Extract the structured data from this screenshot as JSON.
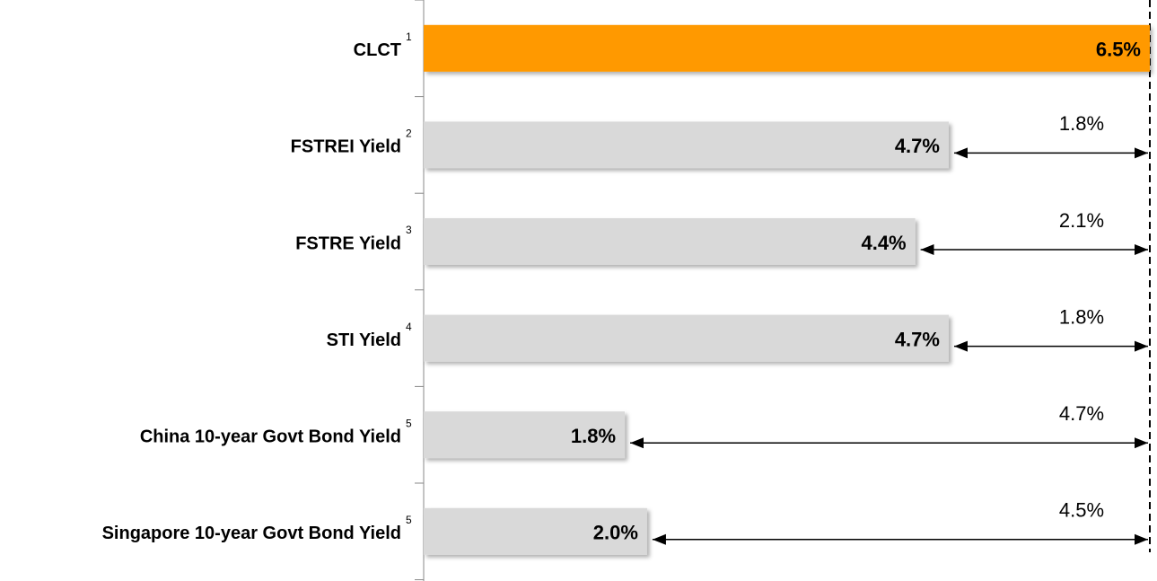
{
  "chart_data": {
    "type": "bar",
    "categories": [
      "CLCT",
      "FSTREI Yield",
      "FSTRE Yield",
      "STI Yield",
      "China 10-year Govt Bond Yield",
      "Singapore 10-year Govt Bond Yield"
    ],
    "footnotes": [
      "1",
      "2",
      "3",
      "4",
      "5",
      "5"
    ],
    "values": [
      6.5,
      4.7,
      4.4,
      4.7,
      1.8,
      2.0
    ],
    "value_labels": [
      "6.5%",
      "4.7%",
      "4.4%",
      "4.7%",
      "1.8%",
      "2.0%"
    ],
    "colors": [
      "#ff9900",
      "#d9d9d9",
      "#d9d9d9",
      "#d9d9d9",
      "#d9d9d9",
      "#d9d9d9"
    ],
    "spreads": [
      null,
      1.8,
      2.1,
      1.8,
      4.7,
      4.5
    ],
    "spread_labels": [
      null,
      "1.8%",
      "2.1%",
      "1.8%",
      "4.7%",
      "4.5%"
    ],
    "xlim": [
      0,
      6.5
    ]
  }
}
